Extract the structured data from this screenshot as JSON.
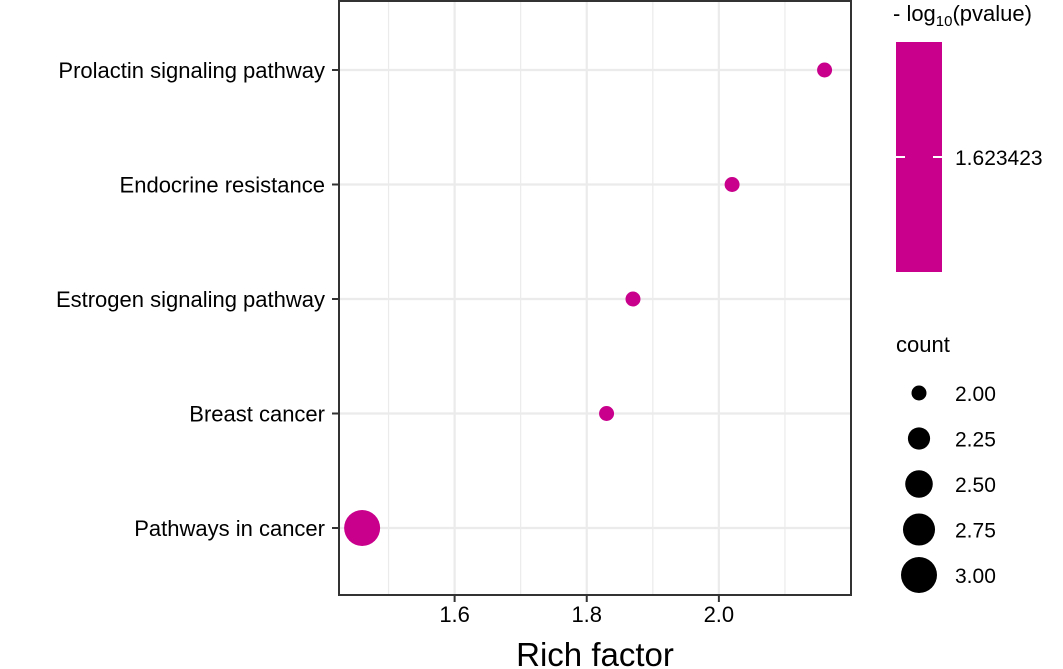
{
  "chart_data": {
    "type": "scatter",
    "title": "",
    "xlabel": "Rich factor",
    "ylabel": "",
    "xlim": [
      1.425,
      2.2
    ],
    "x_ticks": [
      "1.6",
      "1.8",
      "2.0"
    ],
    "categories": [
      "Prolactin signaling pathway",
      "Endocrine resistance",
      "Estrogen signaling pathway",
      "Breast cancer",
      "Pathways in cancer"
    ],
    "points": [
      {
        "term": "Prolactin signaling pathway",
        "x": 2.16,
        "count": 2,
        "neg_log10_pvalue": 1.623423
      },
      {
        "term": "Endocrine resistance",
        "x": 2.02,
        "count": 2,
        "neg_log10_pvalue": 1.623423
      },
      {
        "term": "Estrogen signaling pathway",
        "x": 1.87,
        "count": 2,
        "neg_log10_pvalue": 1.623423
      },
      {
        "term": "Breast cancer",
        "x": 1.83,
        "count": 2,
        "neg_log10_pvalue": 1.623423
      },
      {
        "term": "Pathways in cancer",
        "x": 1.46,
        "count": 3,
        "neg_log10_pvalue": 1.623423
      }
    ],
    "color_legend": {
      "title_prefix": "- log",
      "title_subscript": "10",
      "title_suffix": "(pvalue)",
      "label": "1.623423",
      "color": "#c8008c"
    },
    "size_legend": {
      "title": "count",
      "labels": [
        "2.00",
        "2.25",
        "2.50",
        "2.75",
        "3.00"
      ],
      "values": [
        2.0,
        2.25,
        2.5,
        2.75,
        3.0
      ],
      "color": "#000000"
    },
    "grid": true,
    "legend_position": "right"
  }
}
